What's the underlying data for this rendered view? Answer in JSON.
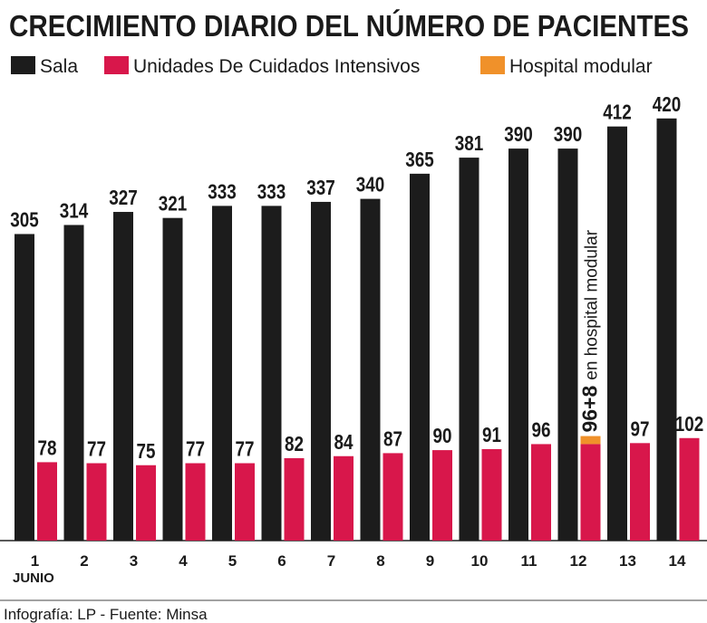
{
  "chart_data": {
    "type": "bar",
    "title": "CRECIMIENTO DIARIO DEL NÚMERO DE  PACIENTES",
    "x_label": "JUNIO",
    "source": "Infografía: LP - Fuente: Minsa",
    "categories": [
      "1",
      "2",
      "3",
      "4",
      "5",
      "6",
      "7",
      "8",
      "9",
      "10",
      "11",
      "12",
      "13",
      "14"
    ],
    "series": [
      {
        "name": "Sala",
        "color": "#1c1c1c",
        "values": [
          305,
          314,
          327,
          321,
          333,
          333,
          337,
          340,
          365,
          381,
          390,
          390,
          412,
          420
        ]
      },
      {
        "name": "Unidades De Cuidados Intensivos",
        "color": "#d8174b",
        "values": [
          78,
          77,
          75,
          77,
          77,
          82,
          84,
          87,
          90,
          91,
          96,
          96,
          97,
          102
        ],
        "value_labels": [
          "78",
          "77",
          "75",
          "77",
          "77",
          "82",
          "84",
          "87",
          "90",
          "91",
          "96",
          null,
          "97",
          "102"
        ]
      },
      {
        "name": "Hospital modular",
        "color": "#f0912a",
        "stacked": true,
        "values": [
          null,
          null,
          null,
          null,
          null,
          null,
          null,
          null,
          null,
          null,
          null,
          8,
          null,
          null
        ]
      }
    ],
    "annotations": [
      "96+8",
      "en hospital modular"
    ]
  }
}
